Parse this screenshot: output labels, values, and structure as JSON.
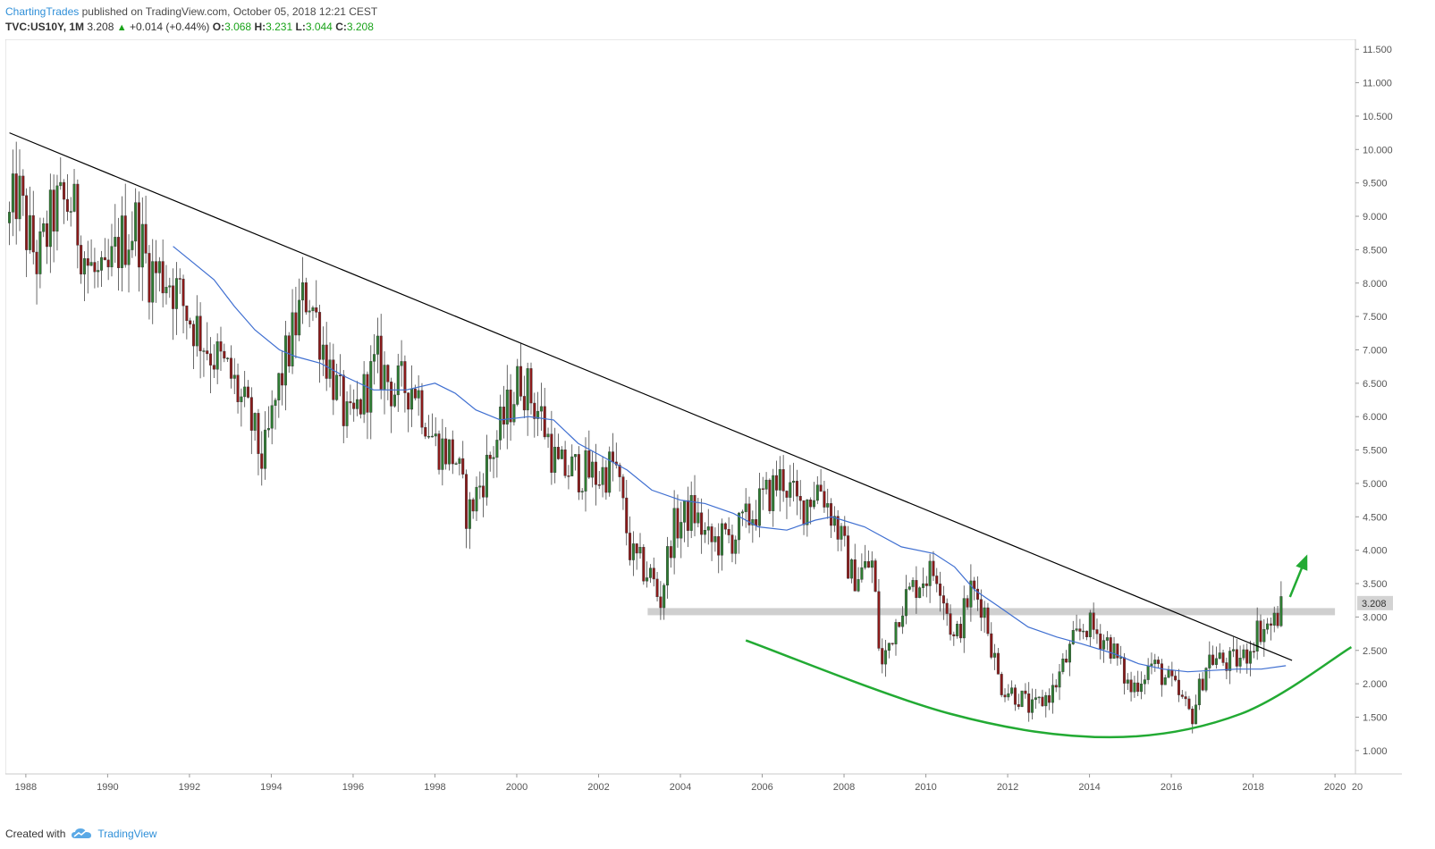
{
  "header": {
    "author": "ChartingTrades",
    "published_text": "published on TradingView.com, October 05, 2018 12:21 CEST"
  },
  "ticker": {
    "symbol": "TVC:US10Y, 1M",
    "last": "3.208",
    "change": "+0.014 (+0.44%)",
    "o_label": "O:",
    "o_value": "3.068",
    "h_label": "H:",
    "h_value": "3.231",
    "l_label": "L:",
    "l_value": "3.044",
    "c_label": "C:",
    "c_value": "3.208"
  },
  "footer": {
    "created_with": "Created with",
    "brand": "TradingView"
  },
  "colors": {
    "up": "#2e7d32",
    "down": "#8b1a1a",
    "ma": "#3f6fd1",
    "trendline": "#000000",
    "support": "#cfcfcf",
    "arc": "#22aa33",
    "grid": "#ececec"
  },
  "chart_data": {
    "type": "candlestick",
    "symbol": "TVC:US10Y",
    "timeframe": "1M",
    "x_ticks": [
      "1988",
      "1990",
      "1992",
      "1994",
      "1996",
      "1998",
      "2000",
      "2002",
      "2004",
      "2006",
      "2008",
      "2010",
      "2012",
      "2014",
      "2016",
      "2018",
      "2020",
      "20"
    ],
    "y_ticks": [
      "1.000",
      "1.500",
      "2.000",
      "2.500",
      "3.000",
      "3.500",
      "4.000",
      "4.500",
      "5.000",
      "5.500",
      "6.000",
      "6.500",
      "7.000",
      "7.500",
      "8.000",
      "8.500",
      "9.000",
      "9.500",
      "10.000",
      "10.500",
      "11.000",
      "11.500"
    ],
    "ylim": [
      0.65,
      11.65
    ],
    "xlim": [
      1987.5,
      2020.5
    ],
    "last_price_label": "3.208",
    "close_path": [
      [
        1987.6,
        8.9
      ],
      [
        1987.8,
        9.4
      ],
      [
        1988.0,
        8.8
      ],
      [
        1988.3,
        8.3
      ],
      [
        1988.7,
        9.1
      ],
      [
        1989.1,
        9.2
      ],
      [
        1989.5,
        8.3
      ],
      [
        1989.9,
        7.9
      ],
      [
        1990.3,
        8.6
      ],
      [
        1990.7,
        8.9
      ],
      [
        1991.0,
        8.2
      ],
      [
        1991.5,
        8.1
      ],
      [
        1992.0,
        7.5
      ],
      [
        1992.5,
        7.0
      ],
      [
        1993.0,
        6.6
      ],
      [
        1993.5,
        5.9
      ],
      [
        1993.8,
        5.3
      ],
      [
        1994.2,
        6.5
      ],
      [
        1994.7,
        7.6
      ],
      [
        1994.9,
        7.9
      ],
      [
        1995.3,
        7.0
      ],
      [
        1995.9,
        5.8
      ],
      [
        1996.3,
        6.4
      ],
      [
        1996.6,
        6.8
      ],
      [
        1997.0,
        6.4
      ],
      [
        1997.5,
        6.5
      ],
      [
        1998.0,
        5.6
      ],
      [
        1998.5,
        5.4
      ],
      [
        1998.8,
        4.5
      ],
      [
        1999.3,
        5.3
      ],
      [
        1999.9,
        6.3
      ],
      [
        2000.1,
        6.6
      ],
      [
        2000.6,
        6.0
      ],
      [
        2001.0,
        5.2
      ],
      [
        2001.5,
        5.2
      ],
      [
        2002.0,
        5.1
      ],
      [
        2002.4,
        5.3
      ],
      [
        2002.8,
        3.9
      ],
      [
        2003.3,
        3.6
      ],
      [
        2003.5,
        3.2
      ],
      [
        2003.8,
        4.3
      ],
      [
        2004.3,
        4.6
      ],
      [
        2004.7,
        4.1
      ],
      [
        2005.3,
        4.2
      ],
      [
        2005.7,
        4.5
      ],
      [
        2006.1,
        4.8
      ],
      [
        2006.5,
        5.1
      ],
      [
        2006.9,
        4.6
      ],
      [
        2007.4,
        5.0
      ],
      [
        2007.8,
        4.4
      ],
      [
        2008.2,
        3.6
      ],
      [
        2008.7,
        3.8
      ],
      [
        2008.9,
        2.2
      ],
      [
        2009.4,
        3.2
      ],
      [
        2009.9,
        3.6
      ],
      [
        2010.3,
        3.7
      ],
      [
        2010.7,
        2.6
      ],
      [
        2011.1,
        3.4
      ],
      [
        2011.4,
        3.2
      ],
      [
        2011.8,
        2.0
      ],
      [
        2012.3,
        1.8
      ],
      [
        2012.6,
        1.6
      ],
      [
        2013.1,
        1.9
      ],
      [
        2013.6,
        2.6
      ],
      [
        2013.9,
        2.9
      ],
      [
        2014.5,
        2.6
      ],
      [
        2015.0,
        1.9
      ],
      [
        2015.5,
        2.3
      ],
      [
        2016.0,
        2.0
      ],
      [
        2016.5,
        1.5
      ],
      [
        2016.9,
        2.4
      ],
      [
        2017.4,
        2.3
      ],
      [
        2017.8,
        2.4
      ],
      [
        2018.1,
        2.8
      ],
      [
        2018.5,
        2.9
      ],
      [
        2018.75,
        3.21
      ]
    ],
    "moving_average": [
      [
        1991.6,
        8.55
      ],
      [
        1992.1,
        8.3
      ],
      [
        1992.6,
        8.05
      ],
      [
        1993.1,
        7.65
      ],
      [
        1993.6,
        7.3
      ],
      [
        1994.2,
        7.0
      ],
      [
        1994.6,
        6.9
      ],
      [
        1995.2,
        6.8
      ],
      [
        1995.8,
        6.6
      ],
      [
        1996.5,
        6.4
      ],
      [
        1997.3,
        6.4
      ],
      [
        1998.0,
        6.5
      ],
      [
        1998.5,
        6.35
      ],
      [
        1999.0,
        6.1
      ],
      [
        1999.6,
        5.95
      ],
      [
        2000.3,
        6.0
      ],
      [
        2000.9,
        5.95
      ],
      [
        2001.5,
        5.6
      ],
      [
        2002.1,
        5.4
      ],
      [
        2002.7,
        5.2
      ],
      [
        2003.3,
        4.9
      ],
      [
        2004.0,
        4.75
      ],
      [
        2004.6,
        4.7
      ],
      [
        2005.3,
        4.55
      ],
      [
        2005.9,
        4.35
      ],
      [
        2006.6,
        4.3
      ],
      [
        2007.3,
        4.45
      ],
      [
        2007.7,
        4.5
      ],
      [
        2008.5,
        4.35
      ],
      [
        2009.4,
        4.05
      ],
      [
        2010.2,
        3.95
      ],
      [
        2010.7,
        3.75
      ],
      [
        2011.2,
        3.4
      ],
      [
        2011.8,
        3.15
      ],
      [
        2012.5,
        2.85
      ],
      [
        2013.2,
        2.7
      ],
      [
        2013.8,
        2.6
      ],
      [
        2014.6,
        2.45
      ],
      [
        2015.2,
        2.3
      ],
      [
        2015.8,
        2.22
      ],
      [
        2016.4,
        2.18
      ],
      [
        2017.0,
        2.2
      ],
      [
        2017.6,
        2.22
      ],
      [
        2018.2,
        2.22
      ],
      [
        2018.8,
        2.27
      ]
    ],
    "trendline": [
      [
        1987.6,
        10.25
      ],
      [
        2018.95,
        2.35
      ]
    ],
    "support_band": {
      "y": 3.08,
      "x_start": 2003.2,
      "x_end": 2020.0
    },
    "arc": [
      [
        2005.6,
        2.65
      ],
      [
        2010.6,
        1.55
      ],
      [
        2014.5,
        1.2
      ],
      [
        2017.7,
        1.55
      ],
      [
        2020.4,
        2.55
      ]
    ],
    "arrow": {
      "from": [
        2018.9,
        3.3
      ],
      "to": [
        2019.3,
        3.9
      ]
    }
  }
}
